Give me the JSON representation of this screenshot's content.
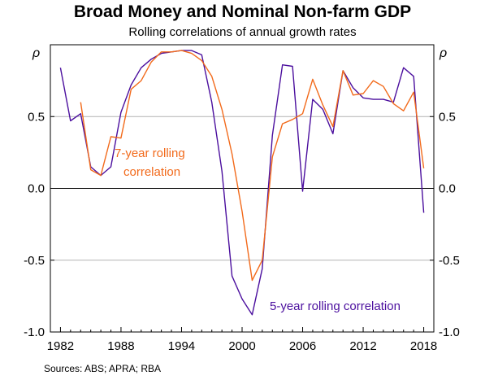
{
  "chart_data": {
    "type": "line",
    "title": "Broad Money and Nominal Non-farm GDP",
    "subtitle": "Rolling correlations of annual growth rates",
    "ylabel": "ρ",
    "ylim": [
      -1.0,
      1.0
    ],
    "xlim": [
      1981,
      2019
    ],
    "x_ticks": [
      1982,
      1988,
      1994,
      2000,
      2006,
      2012,
      2018
    ],
    "y_ticks": [
      {
        "value": -1.0,
        "label": "-1.0"
      },
      {
        "value": -0.5,
        "label": "-0.5"
      },
      {
        "value": 0.0,
        "label": "0.0"
      },
      {
        "value": 0.5,
        "label": "0.5"
      }
    ],
    "series": [
      {
        "name": "5-year rolling correlation",
        "color": "#4b0f9e",
        "points": [
          [
            1982,
            0.84
          ],
          [
            1983,
            0.47
          ],
          [
            1984,
            0.52
          ],
          [
            1985,
            0.15
          ],
          [
            1986,
            0.09
          ],
          [
            1987,
            0.15
          ],
          [
            1988,
            0.53
          ],
          [
            1989,
            0.72
          ],
          [
            1990,
            0.84
          ],
          [
            1991,
            0.9
          ],
          [
            1992,
            0.94
          ],
          [
            1993,
            0.95
          ],
          [
            1994,
            0.96
          ],
          [
            1995,
            0.96
          ],
          [
            1996,
            0.93
          ],
          [
            1997,
            0.6
          ],
          [
            1998,
            0.12
          ],
          [
            1999,
            -0.61
          ],
          [
            2000,
            -0.77
          ],
          [
            2001,
            -0.88
          ],
          [
            2002,
            -0.56
          ],
          [
            2003,
            0.37
          ],
          [
            2004,
            0.86
          ],
          [
            2005,
            0.85
          ],
          [
            2006,
            -0.02
          ],
          [
            2007,
            0.62
          ],
          [
            2008,
            0.55
          ],
          [
            2009,
            0.38
          ],
          [
            2010,
            0.82
          ],
          [
            2011,
            0.7
          ],
          [
            2012,
            0.63
          ],
          [
            2013,
            0.62
          ],
          [
            2014,
            0.62
          ],
          [
            2015,
            0.6
          ],
          [
            2016,
            0.84
          ],
          [
            2017,
            0.78
          ],
          [
            2018,
            -0.17
          ]
        ]
      },
      {
        "name": "7-year rolling correlation",
        "color": "#f26a1b",
        "points": [
          [
            1984,
            0.6
          ],
          [
            1985,
            0.13
          ],
          [
            1986,
            0.09
          ],
          [
            1987,
            0.36
          ],
          [
            1988,
            0.35
          ],
          [
            1989,
            0.69
          ],
          [
            1990,
            0.75
          ],
          [
            1991,
            0.88
          ],
          [
            1992,
            0.95
          ],
          [
            1993,
            0.95
          ],
          [
            1994,
            0.96
          ],
          [
            1995,
            0.94
          ],
          [
            1996,
            0.89
          ],
          [
            1997,
            0.78
          ],
          [
            1998,
            0.55
          ],
          [
            1999,
            0.24
          ],
          [
            2000,
            -0.16
          ],
          [
            2001,
            -0.64
          ],
          [
            2002,
            -0.5
          ],
          [
            2003,
            0.22
          ],
          [
            2004,
            0.45
          ],
          [
            2005,
            0.48
          ],
          [
            2006,
            0.52
          ],
          [
            2007,
            0.76
          ],
          [
            2008,
            0.58
          ],
          [
            2009,
            0.43
          ],
          [
            2010,
            0.82
          ],
          [
            2011,
            0.65
          ],
          [
            2012,
            0.66
          ],
          [
            2013,
            0.75
          ],
          [
            2014,
            0.71
          ],
          [
            2015,
            0.59
          ],
          [
            2016,
            0.54
          ],
          [
            2017,
            0.67
          ],
          [
            2018,
            0.14
          ]
        ]
      }
    ],
    "annotations": [
      {
        "text_lines": [
          "7-year rolling",
          "correlation"
        ],
        "color": "#f26a1b"
      },
      {
        "text_lines": [
          "5-year rolling correlation"
        ],
        "color": "#4b0f9e"
      }
    ],
    "source": "Sources:   ABS; APRA; RBA"
  }
}
